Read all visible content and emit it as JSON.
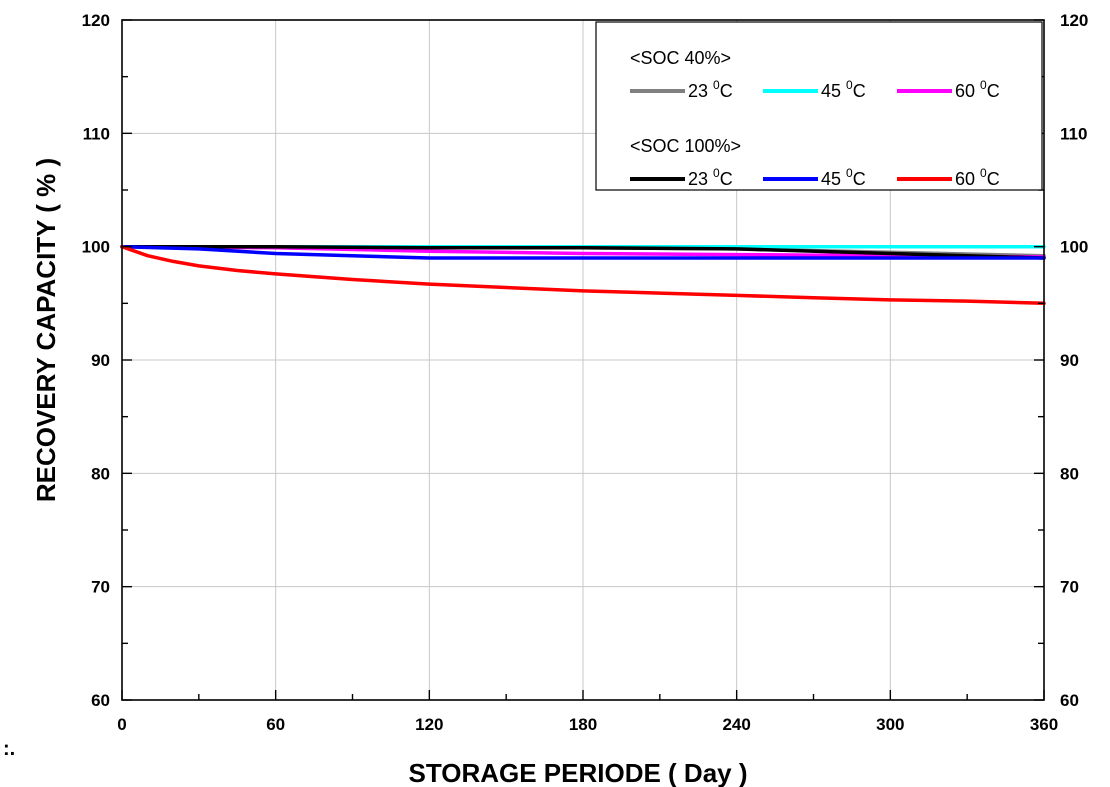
{
  "stray_mark": ":.",
  "chart_data": {
    "type": "line",
    "title": "",
    "xlabel": "STORAGE PERIODE ( Day )",
    "ylabel": "RECOVERY CAPACITY ( % )",
    "xlim": [
      0,
      360
    ],
    "ylim": [
      60,
      120
    ],
    "xticks": [
      0,
      60,
      120,
      180,
      240,
      300,
      360
    ],
    "yticks": [
      60,
      70,
      80,
      90,
      100,
      110,
      120
    ],
    "right_axis_ticks": [
      60,
      70,
      80,
      90,
      100,
      110,
      120
    ],
    "grid": true,
    "legend_position": "top-right",
    "legend_groups": [
      {
        "title": "<SOC 40%>",
        "entries": [
          {
            "label": "23 ",
            "sup": "0",
            "unit": "C",
            "color": "#808080"
          },
          {
            "label": "45 ",
            "sup": "0",
            "unit": "C",
            "color": "#00ffff"
          },
          {
            "label": "60 ",
            "sup": "0",
            "unit": "C",
            "color": "#ff00ff"
          }
        ]
      },
      {
        "title": "<SOC 100%>",
        "entries": [
          {
            "label": "23 ",
            "sup": "0",
            "unit": "C",
            "color": "#000000"
          },
          {
            "label": "45 ",
            "sup": "0",
            "unit": "C",
            "color": "#0000ff"
          },
          {
            "label": "60 ",
            "sup": "0",
            "unit": "C",
            "color": "#ff0000"
          }
        ]
      }
    ],
    "series": [
      {
        "group": "<SOC 40%>",
        "temp": "23 °C",
        "color": "#808080",
        "x": [
          0,
          60,
          120,
          180,
          240,
          300,
          360
        ],
        "y": [
          100,
          100,
          100,
          99.9,
          99.8,
          99.5,
          99.2
        ]
      },
      {
        "group": "<SOC 40%>",
        "temp": "45 °C",
        "color": "#00ffff",
        "x": [
          0,
          60,
          120,
          180,
          240,
          300,
          360
        ],
        "y": [
          100,
          100,
          100,
          100,
          100,
          100,
          100
        ]
      },
      {
        "group": "<SOC 40%>",
        "temp": "60 °C",
        "color": "#ff00ff",
        "x": [
          0,
          60,
          120,
          180,
          240,
          300,
          360
        ],
        "y": [
          100,
          99.9,
          99.6,
          99.4,
          99.3,
          99.2,
          99.1
        ]
      },
      {
        "group": "<SOC 100%>",
        "temp": "23 °C",
        "color": "#000000",
        "x": [
          0,
          60,
          120,
          180,
          240,
          300,
          360
        ],
        "y": [
          100,
          100,
          99.9,
          99.9,
          99.8,
          99.4,
          99.0
        ]
      },
      {
        "group": "<SOC 100%>",
        "temp": "45 °C",
        "color": "#0000ff",
        "x": [
          0,
          30,
          60,
          120,
          180,
          240,
          300,
          360
        ],
        "y": [
          100,
          99.8,
          99.4,
          99.0,
          99.0,
          99.0,
          99.0,
          99.0
        ]
      },
      {
        "group": "<SOC 100%>",
        "temp": "60 °C",
        "color": "#ff0000",
        "x": [
          0,
          10,
          20,
          30,
          45,
          60,
          90,
          120,
          150,
          180,
          210,
          240,
          270,
          300,
          330,
          360
        ],
        "y": [
          100,
          99.2,
          98.7,
          98.3,
          97.9,
          97.6,
          97.1,
          96.7,
          96.4,
          96.1,
          95.9,
          95.7,
          95.5,
          95.3,
          95.2,
          95.0
        ]
      }
    ]
  }
}
